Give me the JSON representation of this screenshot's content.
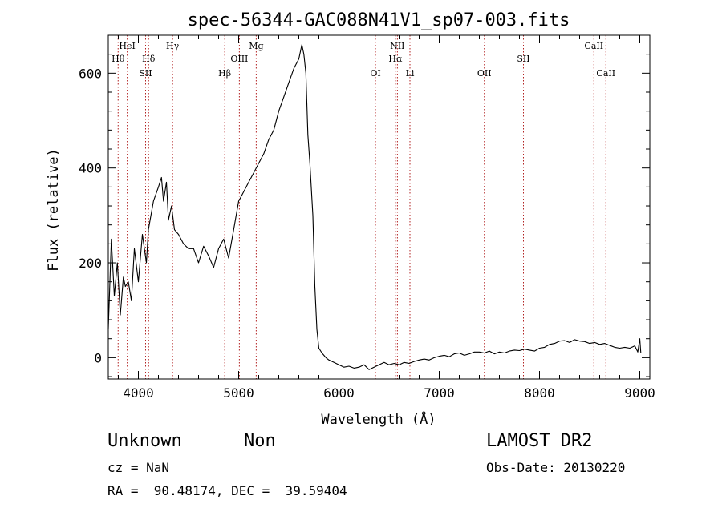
{
  "chart_data": {
    "type": "line",
    "title": "spec-56344-GAC088N41V1_sp07-003.fits",
    "xlabel": "Wavelength (Å)",
    "ylabel": "Flux (relative)",
    "xlim": [
      3700,
      9100
    ],
    "ylim": [
      -45,
      680
    ],
    "xticks": [
      4000,
      5000,
      6000,
      7000,
      8000,
      9000
    ],
    "yticks": [
      0,
      200,
      400,
      600
    ],
    "xtick_labels": [
      "4000",
      "5000",
      "6000",
      "7000",
      "8000",
      "9000"
    ],
    "ytick_labels": [
      "0",
      "200",
      "400",
      "600"
    ],
    "series": [
      {
        "color": "#000000",
        "x": [
          3700,
          3730,
          3760,
          3790,
          3820,
          3850,
          3870,
          3900,
          3930,
          3960,
          4000,
          4040,
          4080,
          4100,
          4150,
          4200,
          4230,
          4250,
          4280,
          4300,
          4330,
          4360,
          4400,
          4450,
          4500,
          4550,
          4600,
          4650,
          4700,
          4750,
          4800,
          4850,
          4900,
          4950,
          5000,
          5050,
          5100,
          5150,
          5200,
          5250,
          5300,
          5350,
          5400,
          5450,
          5500,
          5550,
          5600,
          5630,
          5650,
          5670,
          5690,
          5710,
          5740,
          5760,
          5780,
          5800,
          5830,
          5870,
          5900,
          5950,
          6000,
          6050,
          6100,
          6150,
          6200,
          6250,
          6300,
          6350,
          6400,
          6450,
          6500,
          6550,
          6600,
          6650,
          6700,
          6750,
          6800,
          6850,
          6900,
          6950,
          7000,
          7050,
          7100,
          7150,
          7200,
          7250,
          7300,
          7350,
          7400,
          7450,
          7500,
          7550,
          7600,
          7650,
          7700,
          7750,
          7800,
          7850,
          7900,
          7950,
          8000,
          8050,
          8100,
          8150,
          8200,
          8250,
          8300,
          8350,
          8400,
          8450,
          8500,
          8550,
          8600,
          8650,
          8700,
          8750,
          8800,
          8850,
          8900,
          8950,
          8980,
          9000,
          9010
        ],
        "y": [
          60,
          250,
          130,
          200,
          90,
          170,
          150,
          160,
          120,
          230,
          160,
          260,
          200,
          270,
          330,
          360,
          380,
          330,
          370,
          290,
          320,
          270,
          260,
          240,
          230,
          230,
          200,
          235,
          215,
          190,
          230,
          250,
          210,
          270,
          330,
          350,
          370,
          390,
          410,
          430,
          460,
          480,
          520,
          550,
          580,
          610,
          630,
          660,
          640,
          600,
          470,
          410,
          300,
          150,
          60,
          20,
          10,
          0,
          -5,
          -10,
          -15,
          -20,
          -18,
          -22,
          -20,
          -15,
          -25,
          -20,
          -15,
          -10,
          -15,
          -12,
          -15,
          -10,
          -12,
          -8,
          -5,
          -3,
          -5,
          0,
          3,
          5,
          2,
          8,
          10,
          5,
          8,
          12,
          12,
          10,
          14,
          8,
          12,
          10,
          14,
          16,
          15,
          18,
          16,
          14,
          20,
          22,
          28,
          30,
          35,
          36,
          32,
          38,
          35,
          34,
          30,
          32,
          28,
          30,
          26,
          22,
          20,
          22,
          20,
          25,
          12,
          40,
          10
        ]
      }
    ],
    "line_markers": [
      {
        "label": "Hθ",
        "x": 3798,
        "row": 1
      },
      {
        "label": "HeI",
        "x": 3889,
        "row": 0
      },
      {
        "label": "SII",
        "x": 4072,
        "row": 2
      },
      {
        "label": "Hδ",
        "x": 4102,
        "row": 1
      },
      {
        "label": "Hγ",
        "x": 4341,
        "row": 0
      },
      {
        "label": "Hβ",
        "x": 4861,
        "row": 2
      },
      {
        "label": "OIII",
        "x": 5007,
        "row": 1
      },
      {
        "label": "Mg",
        "x": 5175,
        "row": 0
      },
      {
        "label": "OI",
        "x": 6364,
        "row": 2
      },
      {
        "label": "NII",
        "x": 6583,
        "row": 0
      },
      {
        "label": "Hα",
        "x": 6563,
        "row": 1
      },
      {
        "label": "Li",
        "x": 6708,
        "row": 2
      },
      {
        "label": "OII",
        "x": 7450,
        "row": 2
      },
      {
        "label": "SII",
        "x": 7840,
        "row": 1
      },
      {
        "label": "CaII",
        "x": 8542,
        "row": 0
      },
      {
        "label": "CaII",
        "x": 8662,
        "row": 2
      }
    ]
  },
  "info": {
    "class": "Unknown",
    "subclass": "Non",
    "survey": "LAMOST DR2",
    "cz": "cz = NaN",
    "obs_date": "Obs-Date: 20130220",
    "radec": "RA =  90.48174, DEC =  39.59404"
  },
  "colors": {
    "marker_line": "#b22222",
    "spectrum": "#000000"
  }
}
